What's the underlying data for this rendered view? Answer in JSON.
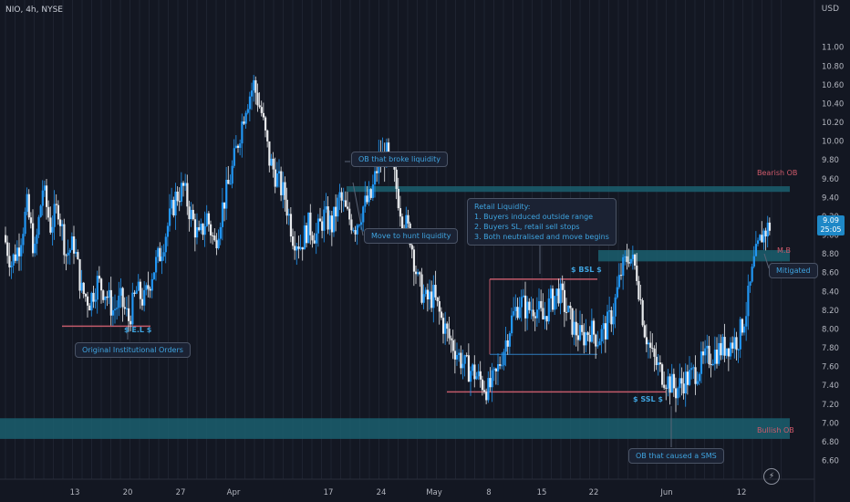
{
  "header": {
    "symbol": "NIO, 4h, NYSE",
    "currency": "USD"
  },
  "price_tag": {
    "price": "9.09",
    "countdown": "25:05"
  },
  "colors": {
    "up": "#2196f3",
    "down": "#e8eaed",
    "zone": "#1b5f6e",
    "level": "#c25a6a",
    "annotation": "#3fa4e0"
  },
  "icons": {
    "flash": "flash-icon"
  },
  "annotations": {
    "orig_orders": "Original Institutional Orders",
    "ob_broke": "OB that broke liquidity",
    "move_hunt": "Move to hunt liquidity",
    "retail": "Retail Liquidity:\n1. Buyers induced outside range\n2. Buyers SL, retail sell stops\n3. Both neutralised and move begins",
    "mitigated": "Mitigated",
    "ob_sms": "OB that caused a SMS"
  },
  "labels": {
    "bearish_ob": "Bearish OB",
    "bullish_ob": "Bullish OB",
    "mb": "M.B",
    "el": "$ E.L $",
    "bsl": "$ BSL $",
    "ssl": "$ SSL $"
  },
  "chart_data": {
    "type": "candlestick",
    "title": "NIO, 4h, NYSE",
    "ylabel": "USD",
    "ylim": [
      6.45,
      11.25
    ],
    "yticks": [
      "11.00",
      "10.80",
      "10.60",
      "10.40",
      "10.20",
      "10.00",
      "9.80",
      "9.60",
      "9.40",
      "9.20",
      "9.00",
      "8.80",
      "8.60",
      "8.40",
      "8.20",
      "8.00",
      "7.80",
      "7.60",
      "7.40",
      "7.20",
      "7.00",
      "6.80",
      "6.60"
    ],
    "xticks": [
      "13",
      "20",
      "27",
      "Apr",
      "17",
      "24",
      "May",
      "8",
      "15",
      "22",
      "Jun",
      "12"
    ],
    "close_path": [
      9.0,
      8.7,
      8.9,
      9.3,
      8.8,
      9.5,
      9.1,
      9.3,
      8.8,
      8.9,
      8.4,
      8.3,
      8.5,
      8.4,
      8.2,
      8.3,
      8.1,
      8.4,
      8.3,
      8.6,
      8.8,
      9.1,
      9.4,
      9.5,
      9.2,
      8.95,
      9.2,
      8.9,
      9.3,
      9.6,
      10.0,
      10.4,
      10.6,
      10.3,
      9.8,
      9.6,
      9.4,
      9.0,
      8.9,
      9.1,
      9.0,
      9.2,
      9.1,
      9.4,
      9.2,
      9.1,
      9.3,
      9.4,
      9.8,
      9.85,
      9.6,
      9.2,
      9.0,
      8.5,
      8.3,
      8.35,
      8.1,
      7.9,
      7.75,
      7.6,
      7.55,
      7.45,
      7.35,
      7.5,
      7.8,
      8.1,
      8.3,
      8.2,
      8.25,
      8.1,
      8.3,
      8.4,
      8.2,
      8.0,
      7.9,
      8.0,
      7.9,
      8.0,
      8.2,
      8.6,
      8.8,
      8.6,
      8.0,
      7.7,
      7.55,
      7.45,
      7.35,
      7.45,
      7.5,
      7.6,
      7.7,
      7.75,
      7.8,
      7.85,
      7.9,
      8.2,
      8.7,
      9.0,
      9.1
    ],
    "levels": {
      "bearish_ob_zone": [
        9.46,
        9.52
      ],
      "mb_zone": [
        8.72,
        8.84
      ],
      "bullish_ob_zone": [
        6.83,
        7.05
      ],
      "el_line": 8.03,
      "bsl_line": 8.53,
      "ssl_line": 7.33,
      "range_low": 7.73
    },
    "grid": true
  }
}
